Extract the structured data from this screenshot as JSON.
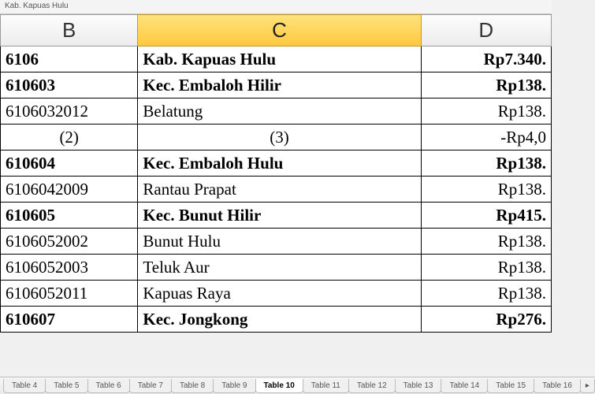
{
  "sheet_title": "Kab. Kapuas Hulu",
  "columns": {
    "B": "B",
    "C": "C",
    "D": "D"
  },
  "selected_column": "C",
  "rows": [
    {
      "b": "6106",
      "c": "Kab.  Kapuas  Hulu",
      "d": "Rp7.340.",
      "bold": true
    },
    {
      "b": "610603",
      "c": "Kec.  Embaloh  Hilir",
      "d": "Rp138.",
      "bold": true
    },
    {
      "b": "6106032012",
      "c": "Belatung",
      "d": "Rp138.",
      "bold": false
    },
    {
      "b": "(2)",
      "c": "(3)",
      "d": "-Rp4,0",
      "bold": false,
      "center": true
    },
    {
      "b": "610604",
      "c": "Kec.  Embaloh  Hulu",
      "d": "Rp138.",
      "bold": true
    },
    {
      "b": "6106042009",
      "c": "Rantau  Prapat",
      "d": "Rp138.",
      "bold": false
    },
    {
      "b": "610605",
      "c": "Kec.  Bunut  Hilir",
      "d": "Rp415.",
      "bold": true
    },
    {
      "b": "6106052002",
      "c": "Bunut  Hulu",
      "d": "Rp138.",
      "bold": false
    },
    {
      "b": "6106052003",
      "c": "Teluk Aur",
      "d": "Rp138.",
      "bold": false
    },
    {
      "b": "6106052011",
      "c": "Kapuas  Raya",
      "d": "Rp138.",
      "bold": false
    },
    {
      "b": "610607",
      "c": "Kec.  Jongkong",
      "d": "Rp276.",
      "bold": true
    }
  ],
  "tabs": {
    "list": [
      "Table 4",
      "Table 5",
      "Table 6",
      "Table 7",
      "Table 8",
      "Table 9",
      "Table 10",
      "Table 11",
      "Table 12",
      "Table 13",
      "Table 14",
      "Table 15",
      "Table 16"
    ],
    "active": "Table 10",
    "more_icon": "▸"
  }
}
